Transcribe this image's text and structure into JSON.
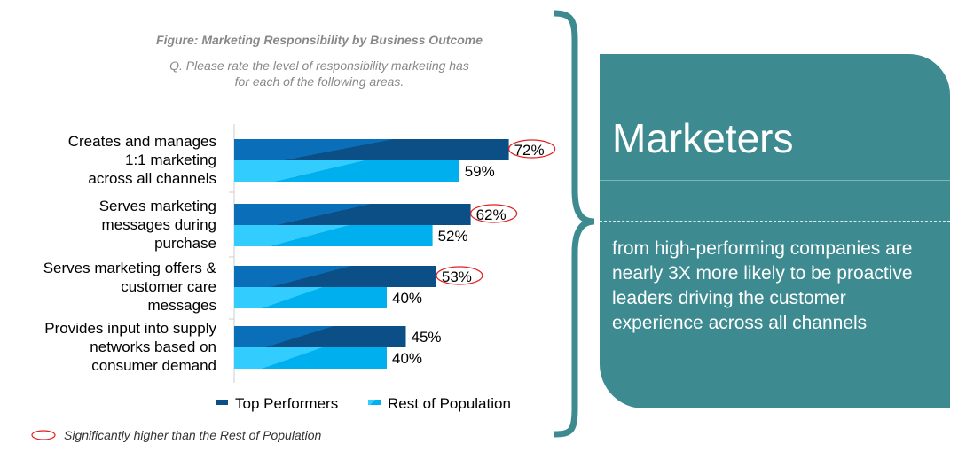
{
  "chart_data": {
    "type": "bar",
    "orientation": "horizontal",
    "title": "Figure: Marketing Responsibility by Business Outcome",
    "subtitle": "Q. Please rate the level of responsibility marketing has for each of the following areas.",
    "subtitle_lines": [
      "Q. Please rate the level of responsibility marketing has",
      "for each of the following areas."
    ],
    "categories": [
      [
        "Creates and manages",
        "1:1 marketing",
        "across all channels"
      ],
      [
        "Serves marketing",
        "messages during",
        "purchase"
      ],
      [
        "Serves marketing offers &",
        "customer care",
        "messages"
      ],
      [
        "Provides input into supply",
        "networks based on",
        "consumer demand"
      ]
    ],
    "series": [
      {
        "name": "Top Performers",
        "values": [
          72,
          62,
          53,
          45
        ],
        "labels": [
          "72%",
          "62%",
          "53%",
          "45%"
        ],
        "color": "#0b4f86",
        "significant": [
          true,
          true,
          true,
          false
        ]
      },
      {
        "name": "Rest of Population",
        "values": [
          59,
          52,
          40,
          40
        ],
        "labels": [
          "59%",
          "52%",
          "40%",
          "40%"
        ],
        "color": "#00b0ee"
      }
    ],
    "xlim": [
      0,
      100
    ],
    "legend_position": "bottom",
    "footnote": "Significantly higher than the Rest of Population",
    "significance_color": "#e02020"
  },
  "callout": {
    "title": "Marketers",
    "body": "from high-performing companies are nearly 3X more likely to be proactive leaders driving the customer experience  across all channels",
    "color": "#3d8b90"
  }
}
